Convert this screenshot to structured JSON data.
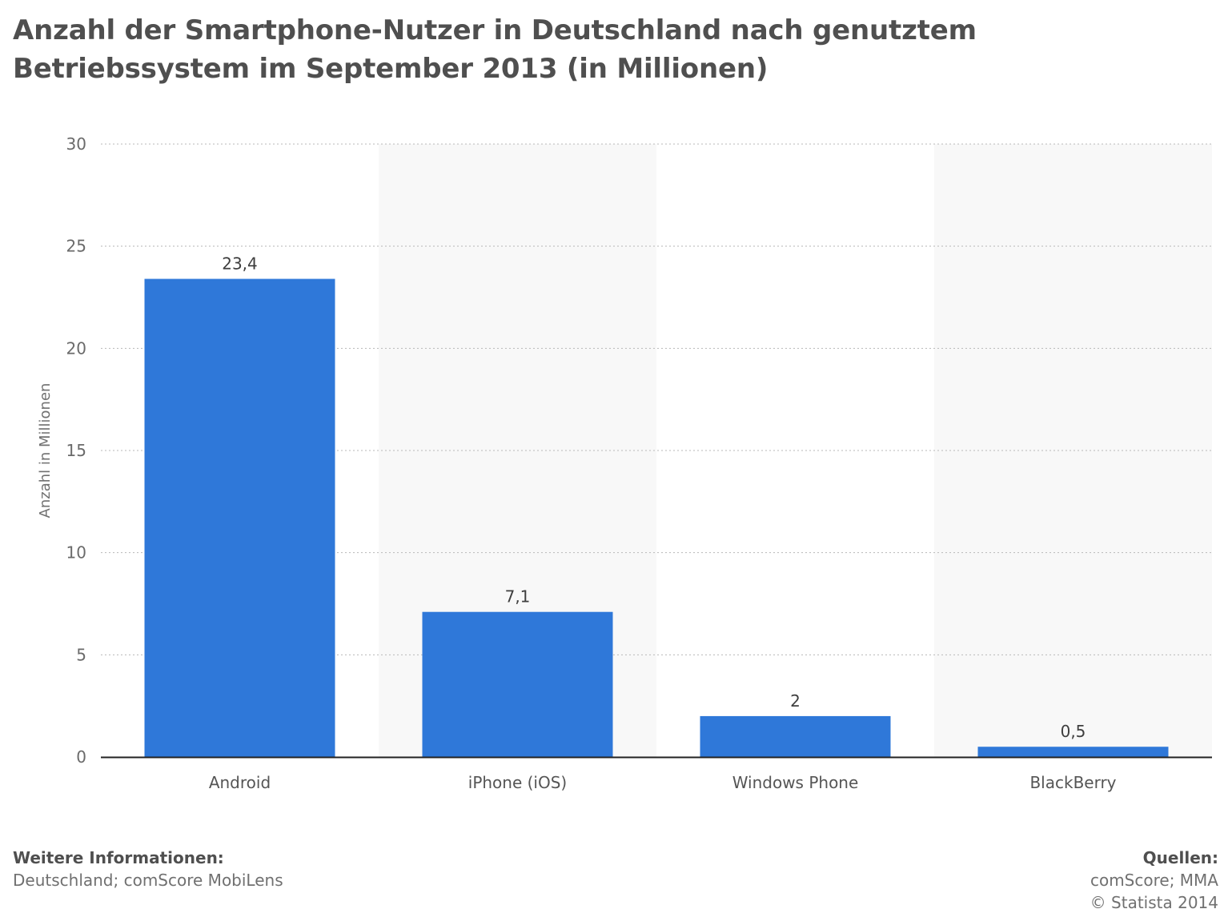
{
  "chart_data": {
    "type": "bar",
    "title": "Anzahl der Smartphone-Nutzer in Deutschland nach genutztem Betriebssystem im September 2013 (in Millionen)",
    "categories": [
      "Android",
      "iPhone (iOS)",
      "Windows Phone",
      "BlackBerry"
    ],
    "values": [
      23.4,
      7.1,
      2,
      0.5
    ],
    "value_labels": [
      "23,4",
      "7,1",
      "2",
      "0,5"
    ],
    "xlabel": "",
    "ylabel": "Anzahl in Millionen",
    "ylim": [
      0,
      30
    ],
    "yticks": [
      0,
      5,
      10,
      15,
      20,
      25,
      30
    ],
    "grid": true,
    "bar_color": "#2f78d9",
    "alt_band_color": "#f8f8f8"
  },
  "footer": {
    "info_heading": "Weitere Informationen:",
    "info_text": "Deutschland; comScore MobiLens",
    "sources_heading": "Quellen:",
    "sources_text": "comScore; MMA",
    "copyright": "© Statista 2014"
  }
}
